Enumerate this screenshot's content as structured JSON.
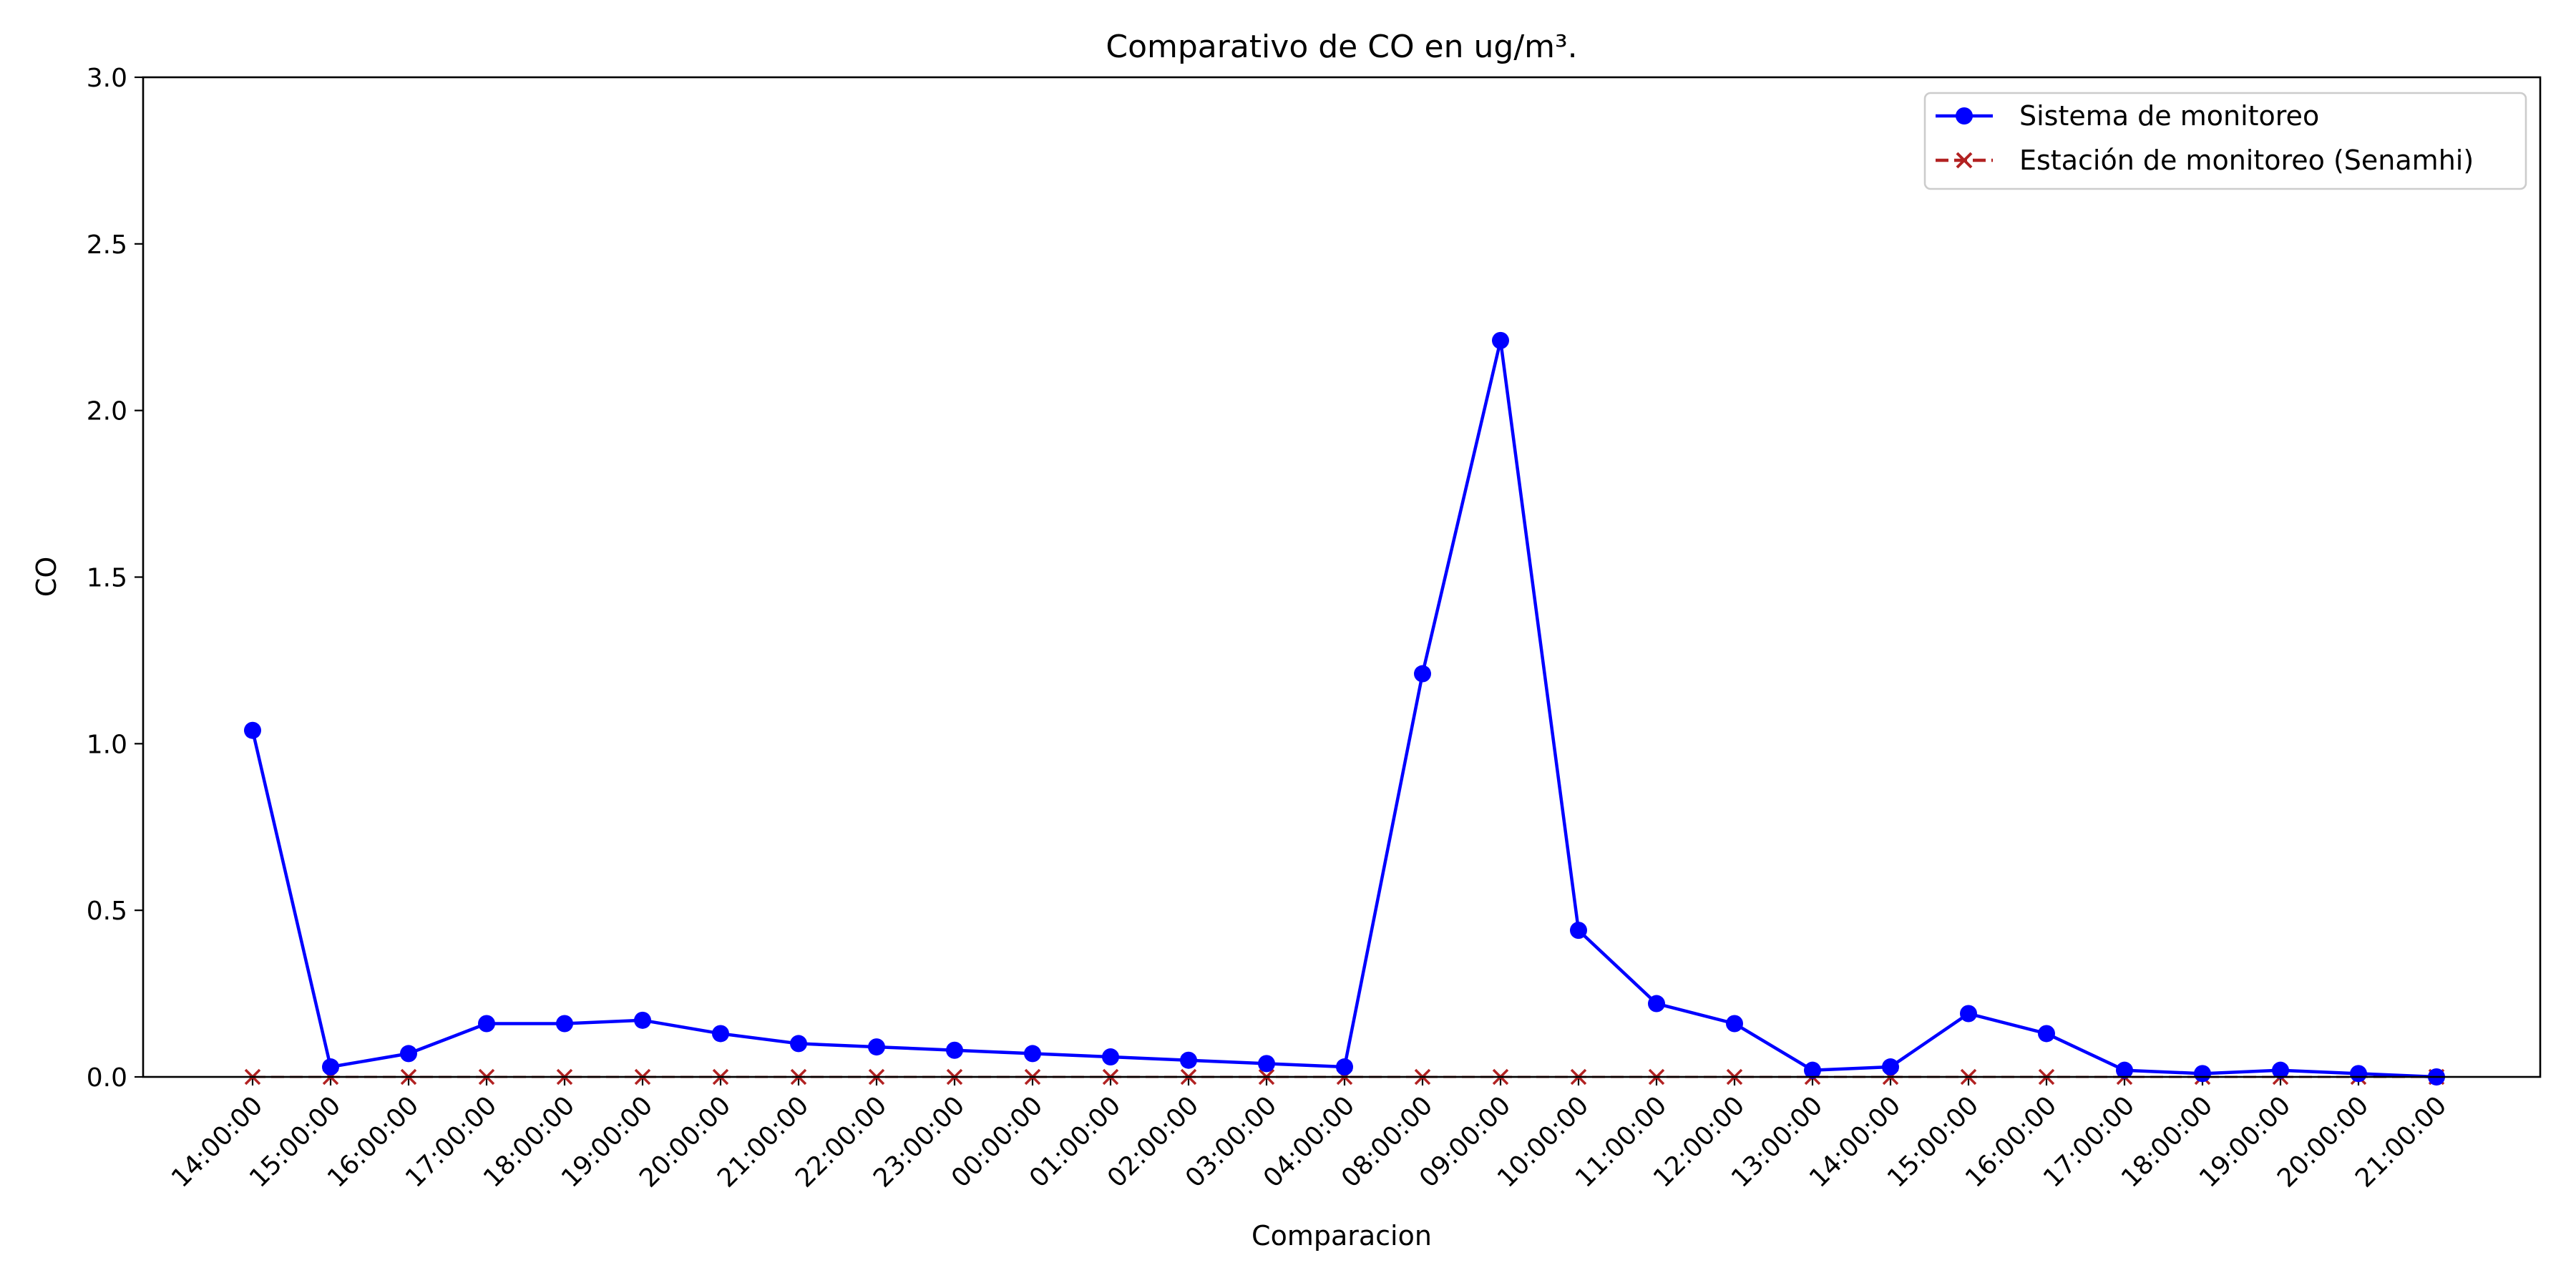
{
  "chart_data": {
    "type": "line",
    "title": "Comparativo de CO en ug/m³.",
    "xlabel": "Comparacion",
    "ylabel": "CO",
    "ylim": [
      0,
      3.0
    ],
    "yticks": [
      "0.0",
      "0.5",
      "1.0",
      "1.5",
      "2.0",
      "2.5",
      "3.0"
    ],
    "categories": [
      "14:00:00",
      "15:00:00",
      "16:00:00",
      "17:00:00",
      "18:00:00",
      "19:00:00",
      "20:00:00",
      "21:00:00",
      "22:00:00",
      "23:00:00",
      "00:00:00",
      "01:00:00",
      "02:00:00",
      "03:00:00",
      "04:00:00",
      "08:00:00",
      "09:00:00",
      "10:00:00",
      "11:00:00",
      "12:00:00",
      "13:00:00",
      "14:00:00",
      "15:00:00",
      "16:00:00",
      "17:00:00",
      "18:00:00",
      "19:00:00",
      "20:00:00",
      "21:00:00"
    ],
    "grid": false,
    "legend_position": "top-right",
    "series": [
      {
        "name": "Sistema de monitoreo",
        "color": "#0000ff",
        "marker": "circle",
        "line_style": "solid",
        "values": [
          1.04,
          0.03,
          0.07,
          0.16,
          0.16,
          0.17,
          0.13,
          0.1,
          0.09,
          0.08,
          0.07,
          0.06,
          0.05,
          0.04,
          0.03,
          1.21,
          2.21,
          0.44,
          0.22,
          0.16,
          0.02,
          0.03,
          0.19,
          0.13,
          0.02,
          0.01,
          0.02,
          0.01,
          0.0
        ]
      },
      {
        "name": "Estación de monitoreo (Senamhi)",
        "color": "#b22222",
        "marker": "x",
        "line_style": "dashed",
        "values": [
          0,
          0,
          0,
          0,
          0,
          0,
          0,
          0,
          0,
          0,
          0,
          0,
          0,
          0,
          0,
          0,
          0,
          0,
          0,
          0,
          0,
          0,
          0,
          0,
          0,
          0,
          0,
          0,
          0
        ]
      }
    ]
  }
}
